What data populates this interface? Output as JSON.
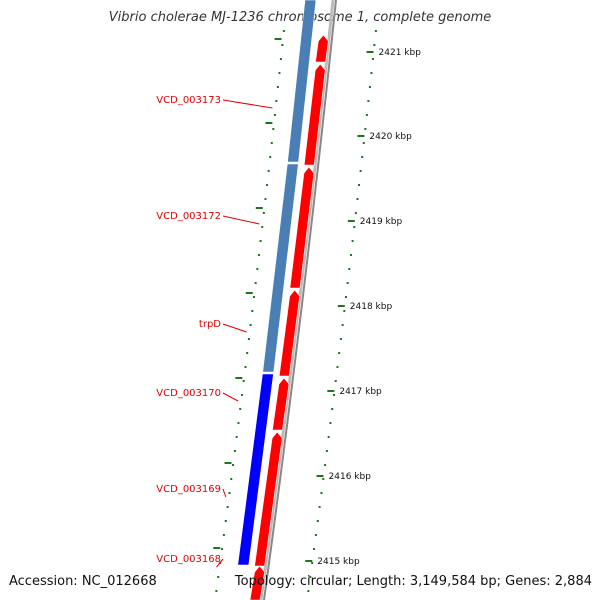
{
  "title": "Vibrio cholerae MJ-1236 chromosome 1, complete genome",
  "footer": {
    "accession": "Accession: NC_012668",
    "summary": "Topology: circular; Length: 3,149,584 bp; Genes: 2,884"
  },
  "colors": {
    "gene_label": "#e00000",
    "leader_line": "#e00000",
    "tick": "#1a7a1a",
    "forward_strand": "#ff0000",
    "reverse_strand": "#4a7fb5",
    "reverse_strand_dark": "#0000ff",
    "backbone": "#888888"
  },
  "gene_labels": [
    {
      "label": "VCD_003173"
    },
    {
      "label": "VCD_003172"
    },
    {
      "label": "trpD"
    },
    {
      "label": "VCD_003170"
    },
    {
      "label": "VCD_003169"
    },
    {
      "label": "VCD_003168"
    }
  ],
  "kbp_labels": [
    {
      "label": "2421 kbp"
    },
    {
      "label": "2420 kbp"
    },
    {
      "label": "2419 kbp"
    },
    {
      "label": "2418 kbp"
    },
    {
      "label": "2417 kbp"
    },
    {
      "label": "2416 kbp"
    },
    {
      "label": "2415 kbp"
    }
  ]
}
